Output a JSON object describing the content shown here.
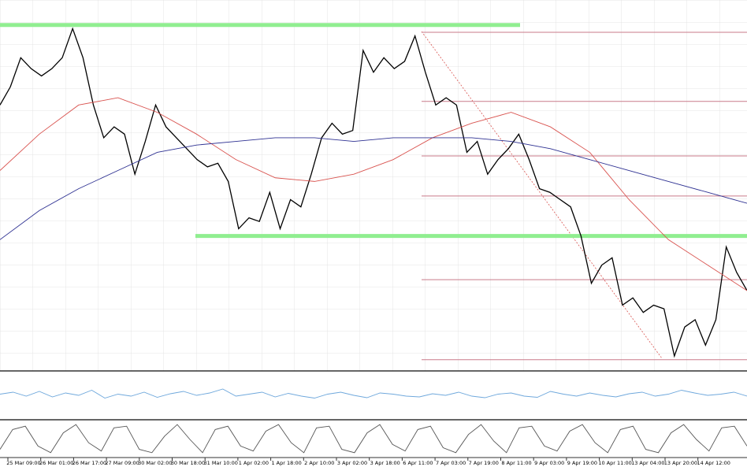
{
  "chart_data": [
    {
      "type": "line",
      "ylim": [
        0,
        100
      ],
      "grid": true,
      "series": [
        {
          "color": "#000000",
          "values": [
            72,
            77,
            85,
            82,
            80,
            82,
            85,
            93,
            85,
            72,
            63,
            66,
            64,
            53,
            62,
            72,
            66,
            63,
            60,
            57,
            55,
            56,
            51,
            38,
            41,
            40,
            48,
            38,
            46,
            44,
            53,
            63,
            67,
            64,
            65,
            87,
            81,
            85,
            82,
            84,
            91,
            81,
            72,
            74,
            72,
            59,
            62,
            53,
            57,
            60,
            64,
            57,
            49,
            48,
            46,
            44,
            36,
            23,
            28,
            30,
            17,
            19,
            15,
            17,
            16,
            3,
            11,
            13,
            6,
            13,
            33,
            26,
            21
          ]
        },
        {
          "color": "#d9534f",
          "values": [
            54,
            64,
            72,
            74,
            70,
            64,
            57,
            52,
            51,
            53,
            57,
            63,
            67,
            70,
            66,
            59,
            46,
            35,
            28,
            21
          ]
        },
        {
          "color": "#2e3192",
          "values": [
            35,
            43,
            49,
            54,
            59,
            61,
            62,
            63,
            63,
            62,
            63,
            63,
            63,
            62,
            60,
            57,
            54,
            51,
            48,
            45
          ]
        }
      ],
      "levels": [
        {
          "value": 94,
          "color": "#90ee90"
        },
        {
          "value": 36,
          "color": "#90ee90"
        },
        {
          "value": 92,
          "color": "#c97a8a"
        },
        {
          "value": 73,
          "color": "#c97a8a"
        },
        {
          "value": 58,
          "color": "#c97a8a"
        },
        {
          "value": 47,
          "color": "#c97a8a"
        },
        {
          "value": 24,
          "color": "#c97a8a"
        },
        {
          "value": 2,
          "color": "#c97a8a"
        }
      ]
    },
    {
      "type": "line",
      "ylim": [
        0,
        100
      ],
      "series": [
        {
          "color": "#6fa8dc",
          "values": [
            55,
            60,
            50,
            62,
            48,
            58,
            52,
            65,
            45,
            55,
            50,
            60,
            47,
            56,
            62,
            52,
            58,
            68,
            50,
            55,
            60,
            48,
            57,
            50,
            45,
            55,
            60,
            52,
            46,
            58,
            55,
            50,
            48,
            56,
            52,
            60,
            50,
            46,
            55,
            58,
            50,
            47,
            62,
            55,
            50,
            58,
            52,
            48,
            56,
            60,
            50,
            55,
            65,
            58,
            52,
            55,
            60,
            50
          ]
        }
      ]
    },
    {
      "type": "line",
      "ylim": [
        0,
        100
      ],
      "series": [
        {
          "color": "#555555",
          "values": [
            20,
            80,
            90,
            30,
            10,
            70,
            95,
            40,
            15,
            85,
            90,
            20,
            10,
            60,
            95,
            50,
            10,
            80,
            90,
            30,
            15,
            75,
            95,
            40,
            10,
            85,
            90,
            20,
            10,
            70,
            95,
            35,
            15,
            80,
            90,
            25,
            10,
            65,
            95,
            45,
            10,
            85,
            90,
            30,
            15,
            75,
            95,
            40,
            10,
            80,
            90,
            20,
            10,
            70,
            95,
            50,
            15,
            85,
            90,
            30
          ]
        }
      ]
    }
  ],
  "x_labels": [
    "25 Mar 09:00",
    "26 Mar 01:00",
    "26 Mar 17:00",
    "27 Mar 09:00",
    "30 Mar 02:00",
    "30 Mar 18:00",
    "31 Mar 10:00",
    "1 Apr 02:00",
    "1 Apr 18:00",
    "2 Apr 10:00",
    "3 Apr 02:00",
    "3 Apr 18:00",
    "6 Apr 11:00",
    "7 Apr 03:00",
    "7 Apr 19:00",
    "8 Apr 11:00",
    "9 Apr 03:00",
    "9 Apr 19:00",
    "10 Apr 11:00",
    "13 Apr 04:00",
    "13 Apr 20:00",
    "14 Apr 12:00"
  ]
}
